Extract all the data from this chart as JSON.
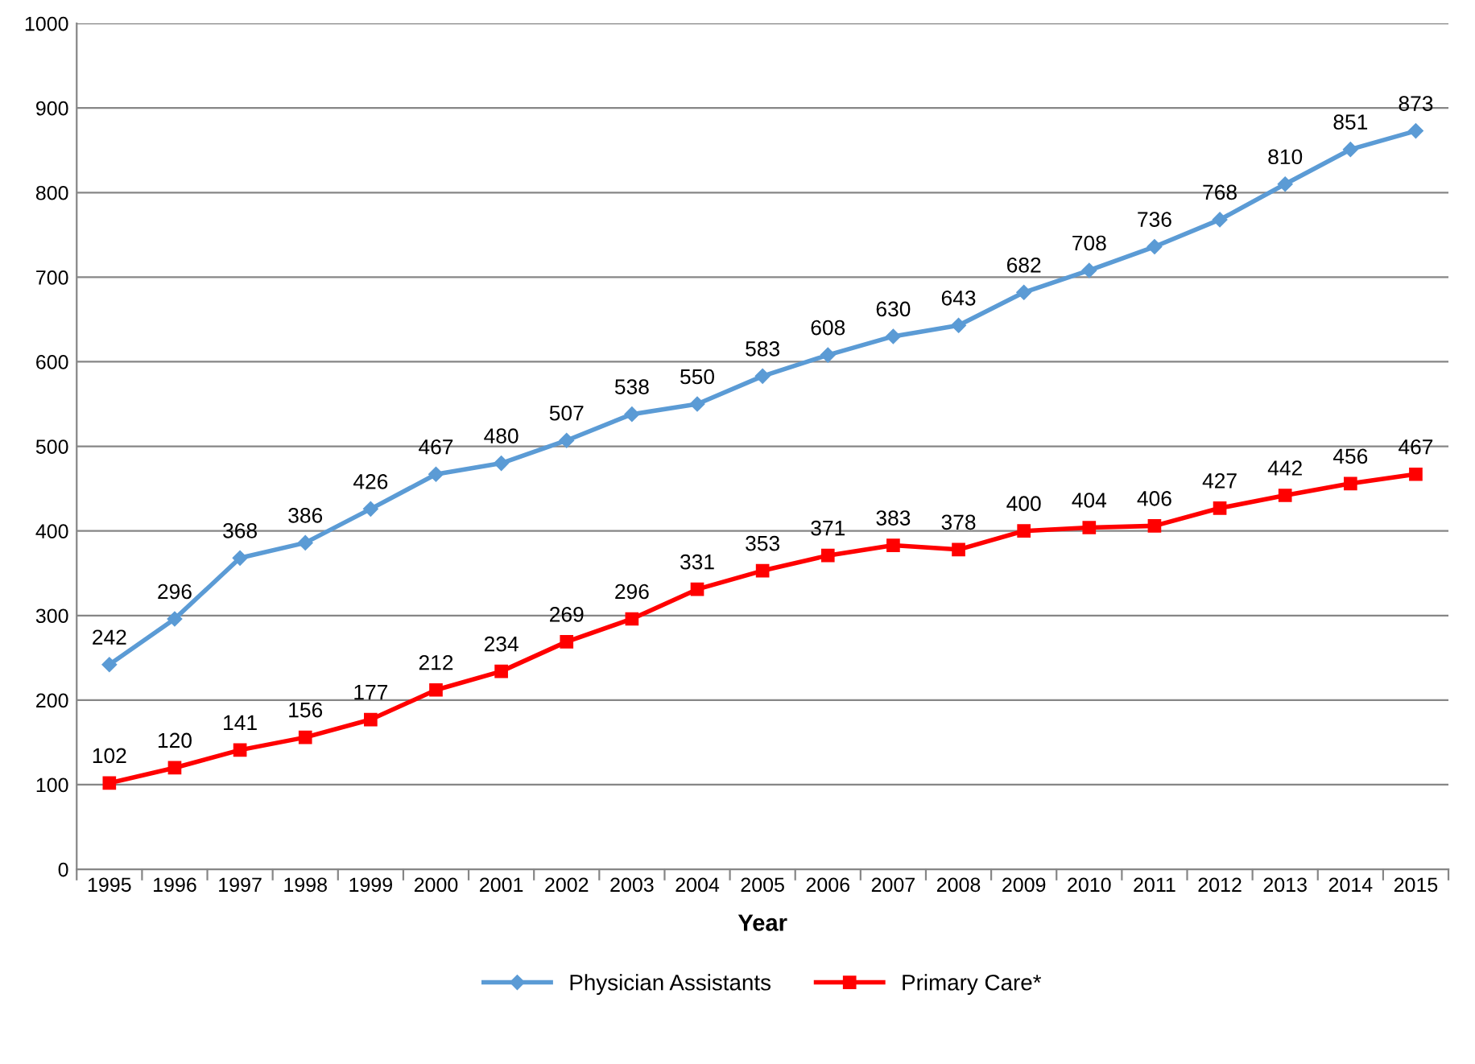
{
  "chart_data": {
    "type": "line",
    "xlabel": "Year",
    "categories": [
      "1995",
      "1996",
      "1997",
      "1998",
      "1999",
      "2000",
      "2001",
      "2002",
      "2003",
      "2004",
      "2005",
      "2006",
      "2007",
      "2008",
      "2009",
      "2010",
      "2011",
      "2012",
      "2013",
      "2014",
      "2015"
    ],
    "series": [
      {
        "name": "Physician Assistants",
        "color": "#5b9bd5",
        "marker": "diamond",
        "values": [
          242,
          296,
          368,
          386,
          426,
          467,
          480,
          507,
          538,
          550,
          583,
          608,
          630,
          643,
          682,
          708,
          736,
          768,
          810,
          851,
          873
        ]
      },
      {
        "name": "Primary Care*",
        "color": "#ff0000",
        "marker": "square",
        "values": [
          102,
          120,
          141,
          156,
          177,
          212,
          234,
          269,
          296,
          331,
          353,
          371,
          383,
          378,
          400,
          404,
          406,
          427,
          442,
          456,
          467
        ]
      }
    ],
    "ylim": [
      0,
      1000
    ],
    "yticks": [
      0,
      100,
      200,
      300,
      400,
      500,
      600,
      700,
      800,
      900,
      1000
    ],
    "grid": "y",
    "legend": "bottom",
    "data_labels": true,
    "line_style": "solid"
  }
}
